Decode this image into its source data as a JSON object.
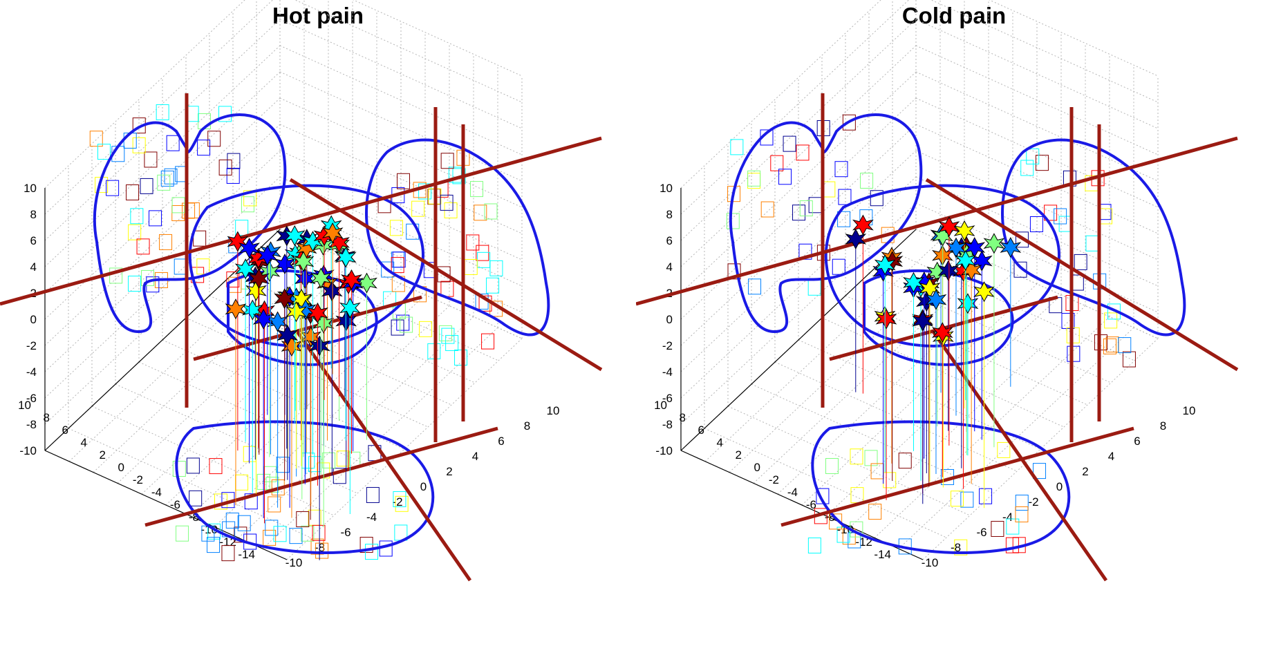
{
  "colors": {
    "outline": "#1a1ae6",
    "axis_rod": "#9b1b12",
    "grid": "#b4b4b4",
    "jet": [
      "#00008f",
      "#0000ff",
      "#0080ff",
      "#00ffff",
      "#80ff80",
      "#ffff00",
      "#ff8000",
      "#ff0000",
      "#800000"
    ]
  },
  "chart_data": [
    {
      "type": "scatter3d",
      "title": "Hot pain",
      "zlabel": "",
      "xlabel": "",
      "ylabel": "",
      "zlim": [
        -10,
        10
      ],
      "ylim": [
        -10,
        10
      ],
      "xlim": [
        -14,
        10
      ],
      "z_ticks": [
        "10",
        "8",
        "6",
        "4",
        "2",
        "0",
        "-2",
        "-4",
        "-6",
        "-8",
        "-10"
      ],
      "y_ticks": [
        "-10",
        "-8",
        "-6",
        "-4",
        "-2",
        "0",
        "2",
        "4",
        "6",
        "8",
        "10"
      ],
      "x_ticks": [
        "10",
        "8",
        "6",
        "4",
        "2",
        "0",
        "-2",
        "-4",
        "-6",
        "-8",
        "-10",
        "-12",
        "-14"
      ],
      "grid": true,
      "marker_count": 60,
      "projected_square_count": 150,
      "points": [
        {
          "x": -3.8,
          "y": -1.5,
          "z": 3.0,
          "c": 4
        },
        {
          "x": -2.5,
          "y": -0.5,
          "z": 2.5,
          "c": 2
        },
        {
          "x": -1.0,
          "y": 1.0,
          "z": 3.5,
          "c": 7
        },
        {
          "x": -2.0,
          "y": 2.5,
          "z": 2.0,
          "c": 6
        },
        {
          "x": 0.5,
          "y": 3.0,
          "z": 2.5,
          "c": 0
        },
        {
          "x": -4.0,
          "y": 0.5,
          "z": 0.5,
          "c": 1
        },
        {
          "x": -3.0,
          "y": -2.0,
          "z": -0.5,
          "c": 8
        },
        {
          "x": 0.0,
          "y": -1.0,
          "z": 1.0,
          "c": 3
        },
        {
          "x": 1.5,
          "y": 1.5,
          "z": 0.0,
          "c": 2
        },
        {
          "x": -5.0,
          "y": -2.0,
          "z": -0.5,
          "c": 1
        },
        {
          "x": -0.5,
          "y": 3.5,
          "z": -1.0,
          "c": 6
        },
        {
          "x": 2.5,
          "y": 2.0,
          "z": -2.0,
          "c": 0
        },
        {
          "x": -2.2,
          "y": 0.2,
          "z": -2.0,
          "c": 5
        },
        {
          "x": -6.0,
          "y": -3.0,
          "z": -1.0,
          "c": 7
        },
        {
          "x": 1.0,
          "y": -2.5,
          "z": 2.0,
          "c": 2
        },
        {
          "x": -1.5,
          "y": -3.5,
          "z": 0.5,
          "c": 3
        },
        {
          "x": 3.0,
          "y": 0.0,
          "z": -4.0,
          "c": 0
        },
        {
          "x": 0.0,
          "y": 1.5,
          "z": -5.0,
          "c": 7
        },
        {
          "x": -3.5,
          "y": 3.0,
          "z": 1.0,
          "c": 4
        },
        {
          "x": -1.0,
          "y": -0.2,
          "z": 4.0,
          "c": 8
        },
        {
          "x": 2.0,
          "y": 3.5,
          "z": 1.5,
          "c": 2
        },
        {
          "x": -4.5,
          "y": 1.8,
          "z": -1.5,
          "c": 6
        },
        {
          "x": 0.8,
          "y": -1.8,
          "z": -1.0,
          "c": 1
        },
        {
          "x": -2.8,
          "y": -3.0,
          "z": 2.8,
          "c": 3
        },
        {
          "x": 1.8,
          "y": 0.8,
          "z": -6.0,
          "c": 0
        },
        {
          "x": -0.5,
          "y": 2.0,
          "z": 3.8,
          "c": 5
        },
        {
          "x": -5.5,
          "y": 0.0,
          "z": 1.5,
          "c": 2
        },
        {
          "x": 2.8,
          "y": -0.8,
          "z": 0.8,
          "c": 7
        },
        {
          "x": -1.8,
          "y": 1.2,
          "z": -3.0,
          "c": 3
        },
        {
          "x": 0.3,
          "y": -2.8,
          "z": -2.8,
          "c": 1
        }
      ]
    },
    {
      "type": "scatter3d",
      "title": "Cold pain",
      "zlabel": "",
      "xlabel": "",
      "ylabel": "",
      "zlim": [
        -10,
        10
      ],
      "ylim": [
        -10,
        10
      ],
      "xlim": [
        -14,
        10
      ],
      "z_ticks": [
        "10",
        "8",
        "6",
        "4",
        "2",
        "0",
        "-2",
        "-4",
        "-6",
        "-8",
        "-10"
      ],
      "y_ticks": [
        "-10",
        "-8",
        "-6",
        "-4",
        "-2",
        "0",
        "2",
        "4",
        "6",
        "8",
        "10"
      ],
      "x_ticks": [
        "10",
        "8",
        "6",
        "4",
        "2",
        "0",
        "-2",
        "-4",
        "-6",
        "-8",
        "-10",
        "-12",
        "-14"
      ],
      "grid": true,
      "marker_count": 40,
      "projected_square_count": 90,
      "points": [
        {
          "x": -2.0,
          "y": 1.0,
          "z": 3.0,
          "c": 0
        },
        {
          "x": -3.0,
          "y": -0.5,
          "z": 2.0,
          "c": 3
        },
        {
          "x": -1.0,
          "y": 2.5,
          "z": 2.5,
          "c": 6
        },
        {
          "x": 0.5,
          "y": 3.0,
          "z": 1.0,
          "c": 1
        },
        {
          "x": -4.0,
          "y": -2.0,
          "z": 0.5,
          "c": 4
        },
        {
          "x": -1.5,
          "y": -1.0,
          "z": -0.5,
          "c": 7
        },
        {
          "x": 1.0,
          "y": -2.0,
          "z": 1.5,
          "c": 0
        },
        {
          "x": -2.5,
          "y": 2.0,
          "z": -1.0,
          "c": 5
        },
        {
          "x": 2.0,
          "y": 1.5,
          "z": 2.5,
          "c": 3
        },
        {
          "x": -5.0,
          "y": -3.0,
          "z": 1.0,
          "c": 1
        },
        {
          "x": 0.0,
          "y": 0.5,
          "z": -2.5,
          "c": 8
        },
        {
          "x": -3.5,
          "y": 3.5,
          "z": 3.5,
          "c": 0
        },
        {
          "x": 1.5,
          "y": -3.5,
          "z": 3.0,
          "c": 4
        },
        {
          "x": -0.5,
          "y": -2.5,
          "z": -3.0,
          "c": 1
        },
        {
          "x": 2.5,
          "y": 3.0,
          "z": -0.5,
          "c": 2
        },
        {
          "x": -1.8,
          "y": 0.0,
          "z": -4.0,
          "c": 8
        },
        {
          "x": 0.8,
          "y": 2.2,
          "z": 4.0,
          "c": 7
        },
        {
          "x": -4.5,
          "y": 1.2,
          "z": 2.2,
          "c": 2
        },
        {
          "x": 3.0,
          "y": -1.0,
          "z": 0.0,
          "c": 1
        },
        {
          "x": -2.8,
          "y": -1.8,
          "z": -2.0,
          "c": 6
        }
      ]
    }
  ]
}
